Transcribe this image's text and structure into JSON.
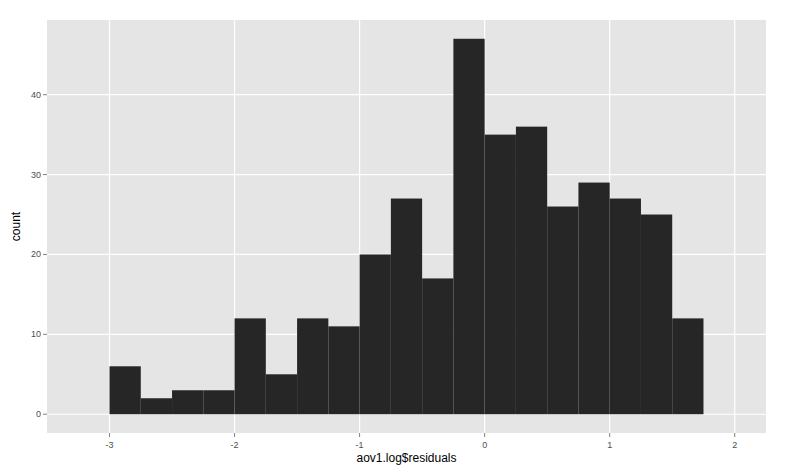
{
  "chart_data": {
    "type": "histogram",
    "x_label": "aov1.log$residuals",
    "y_label": "count",
    "bins": [
      -3,
      -2.75,
      -2.5,
      -2.25,
      -2,
      -1.75,
      -1.5,
      -1.25,
      -1,
      -0.75,
      -0.5,
      -0.25,
      0,
      0.25,
      0.5,
      0.75,
      1,
      1.25,
      1.5,
      1.75
    ],
    "values": [
      6,
      2,
      3,
      3,
      12,
      5,
      12,
      11,
      20,
      27,
      17,
      47,
      35,
      36,
      26,
      29,
      27,
      25,
      12
    ],
    "color": "#262626",
    "xlim": [
      -3.5,
      2.25
    ],
    "ylim": [
      -2.35,
      49.35
    ],
    "xticks": [
      -3,
      -2,
      -1,
      0,
      1,
      2
    ],
    "yticks": [
      0,
      10,
      20,
      30,
      40
    ],
    "grid": true
  }
}
